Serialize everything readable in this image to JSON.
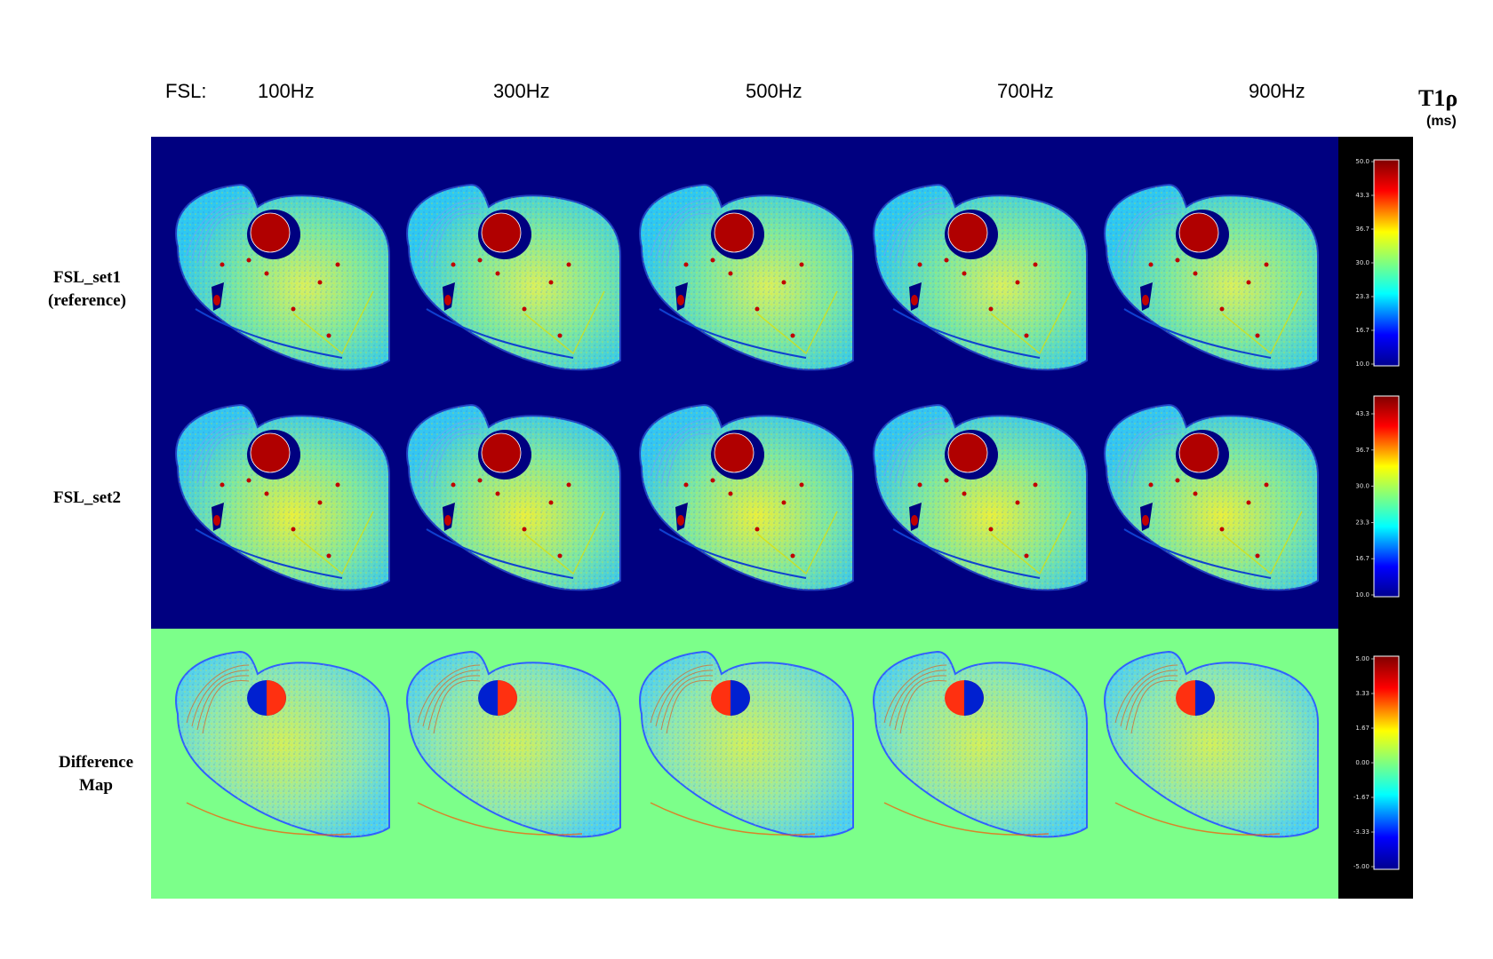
{
  "header": {
    "fsl_label": "FSL:",
    "columns": [
      "100Hz",
      "300Hz",
      "500Hz",
      "700Hz",
      "900Hz"
    ]
  },
  "rows": {
    "set1_line1": "FSL_set1",
    "set1_line2": "(reference)",
    "set2": "FSL_set2",
    "diff_line1": "Difference",
    "diff_line2": "Map"
  },
  "colorbar_title": "T1ρ",
  "colorbar_unit": "(ms)",
  "colorbars": {
    "set1_ticks": [
      "50.0",
      "43.3",
      "36.7",
      "30.0",
      "23.3",
      "16.7",
      "10.0"
    ],
    "set2_ticks": [
      "43.3",
      "36.7",
      "30.0",
      "23.3",
      "16.7",
      "10.0"
    ],
    "diff_ticks": [
      "5.00",
      "3.33",
      "1.67",
      "0.00",
      "-1.67",
      "-3.33",
      "-5.00"
    ]
  },
  "colors": {
    "map_background": "#000080",
    "diff_background": "#7cff8a",
    "tissue": "#3fd0e8",
    "bone": "#b00000",
    "colorbar_bg": "#000000"
  },
  "icons": [
    "jet-colorbar",
    "leg-crosssection-image"
  ]
}
